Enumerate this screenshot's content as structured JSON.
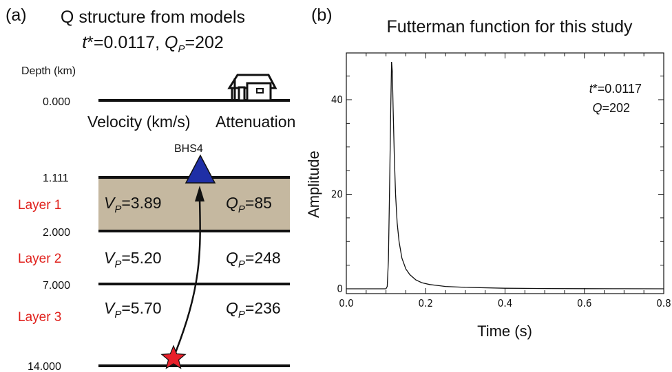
{
  "panel_a": {
    "label": "(a)",
    "title_line1": "Q structure from models",
    "title_line2": {
      "t": "t",
      "star_eq": "*=0.0117, ",
      "q": "Q",
      "sub": "P",
      "eq": "=202"
    },
    "depth_header": "Depth (km)",
    "column_velocity": "Velocity (km/s)",
    "column_attenuation": "Attenuation",
    "station": "BHS4",
    "depths": [
      "0.000",
      "1.111",
      "2.000",
      "7.000",
      "14.000"
    ],
    "layers": [
      {
        "name": "Layer 1",
        "vp_value": "=3.89",
        "qp_value": "=85"
      },
      {
        "name": "Layer 2",
        "vp_value": "=5.20",
        "qp_value": "=248"
      },
      {
        "name": "Layer 3",
        "vp_value": "=5.70",
        "qp_value": "=236"
      }
    ],
    "v_symbol": "V",
    "q_symbol": "Q",
    "p_sub": "P",
    "colors": {
      "layer1_fill": "#c5b8a0",
      "station": "#1f2fa6",
      "source": "#e8202a",
      "layer_label": "#e0201b"
    }
  },
  "panel_b": {
    "label": "(b)",
    "annotation": {
      "t": "t",
      "tstar": "*=0.0117",
      "q": "Q",
      "qval": "=202"
    }
  },
  "chart_data": {
    "type": "line",
    "title": "Futterman function for this study",
    "xlabel": "Time (s)",
    "ylabel": "Amplitude",
    "xlim": [
      0.0,
      0.8
    ],
    "ylim": [
      0,
      48
    ],
    "x_ticks": [
      "0.0",
      "0.2",
      "0.4",
      "0.6",
      "0.8"
    ],
    "y_ticks": [
      "0",
      "20",
      "40"
    ],
    "grid": false,
    "series": [
      {
        "x": [
          0.0,
          0.1,
          0.103,
          0.106,
          0.109,
          0.112,
          0.114,
          0.116,
          0.118,
          0.121,
          0.124,
          0.128,
          0.133,
          0.14,
          0.15,
          0.16,
          0.175,
          0.19,
          0.21,
          0.25,
          0.3,
          0.4,
          0.5,
          0.6,
          0.7,
          0.8
        ],
        "y": [
          0,
          0,
          0.5,
          6,
          21,
          38,
          48,
          46,
          38,
          28,
          20,
          14,
          10,
          6.5,
          4.2,
          3.0,
          1.9,
          1.3,
          0.9,
          0.5,
          0.3,
          0.12,
          0.06,
          0.03,
          0.01,
          0
        ]
      }
    ]
  }
}
